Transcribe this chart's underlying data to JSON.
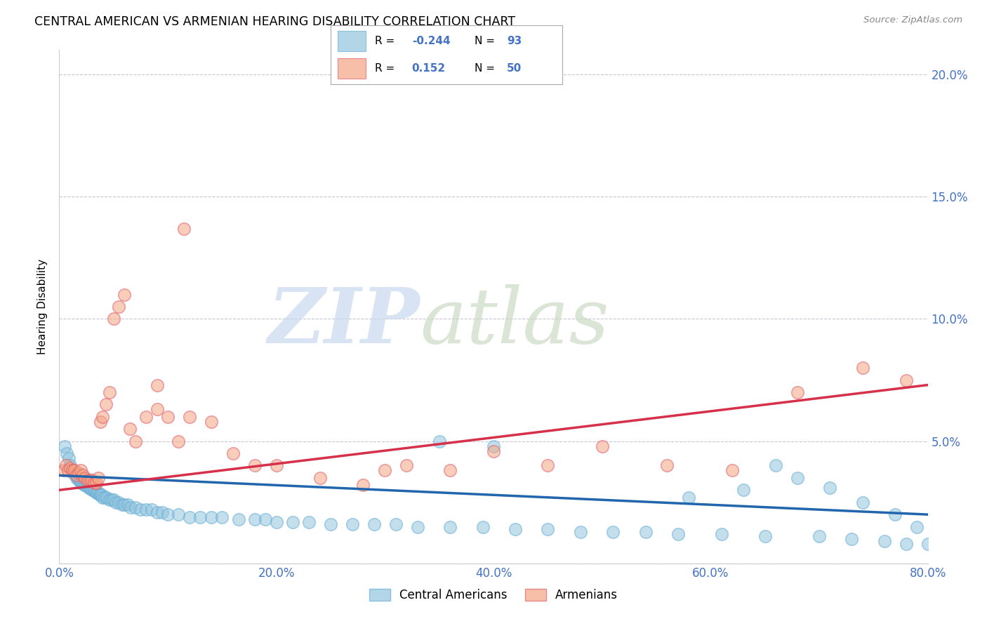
{
  "title": "CENTRAL AMERICAN VS ARMENIAN HEARING DISABILITY CORRELATION CHART",
  "source": "Source: ZipAtlas.com",
  "ylabel": "Hearing Disability",
  "xlim": [
    0.0,
    0.8
  ],
  "ylim": [
    0.0,
    0.21
  ],
  "xtick_vals": [
    0.0,
    0.2,
    0.4,
    0.6,
    0.8
  ],
  "ytick_vals": [
    0.0,
    0.05,
    0.1,
    0.15,
    0.2
  ],
  "xtick_labels": [
    "0.0%",
    "20.0%",
    "40.0%",
    "60.0%",
    "80.0%"
  ],
  "right_ytick_labels": [
    "",
    "5.0%",
    "10.0%",
    "15.0%",
    "20.0%"
  ],
  "blue_color": "#92c5de",
  "pink_color": "#f4a582",
  "blue_scatter_edge": "#6baed6",
  "pink_scatter_edge": "#e06070",
  "blue_line_color": "#2166ac",
  "pink_line_color": "#d6304a",
  "tick_color": "#4472c4",
  "grid_color": "#b8b8c8",
  "blue_trend_x0": 0.0,
  "blue_trend_y0": 0.036,
  "blue_trend_x1": 0.8,
  "blue_trend_y1": 0.02,
  "pink_trend_x0": 0.0,
  "pink_trend_y0": 0.03,
  "pink_trend_x1": 0.8,
  "pink_trend_y1": 0.073,
  "blue_x": [
    0.005,
    0.007,
    0.009,
    0.01,
    0.012,
    0.013,
    0.014,
    0.015,
    0.016,
    0.017,
    0.018,
    0.019,
    0.02,
    0.021,
    0.022,
    0.023,
    0.024,
    0.025,
    0.026,
    0.027,
    0.028,
    0.029,
    0.03,
    0.031,
    0.032,
    0.033,
    0.034,
    0.035,
    0.036,
    0.037,
    0.038,
    0.039,
    0.04,
    0.042,
    0.044,
    0.046,
    0.048,
    0.05,
    0.052,
    0.055,
    0.058,
    0.06,
    0.063,
    0.066,
    0.07,
    0.075,
    0.08,
    0.085,
    0.09,
    0.095,
    0.1,
    0.11,
    0.12,
    0.13,
    0.14,
    0.15,
    0.165,
    0.18,
    0.19,
    0.2,
    0.215,
    0.23,
    0.25,
    0.27,
    0.29,
    0.31,
    0.33,
    0.36,
    0.39,
    0.42,
    0.45,
    0.48,
    0.51,
    0.54,
    0.57,
    0.61,
    0.65,
    0.7,
    0.73,
    0.76,
    0.78,
    0.8,
    0.63,
    0.58,
    0.66,
    0.68,
    0.71,
    0.74,
    0.77,
    0.79,
    0.81,
    0.4,
    0.35
  ],
  "blue_y": [
    0.048,
    0.045,
    0.043,
    0.04,
    0.038,
    0.037,
    0.037,
    0.036,
    0.035,
    0.035,
    0.034,
    0.034,
    0.033,
    0.033,
    0.033,
    0.032,
    0.032,
    0.032,
    0.032,
    0.031,
    0.031,
    0.031,
    0.03,
    0.03,
    0.03,
    0.03,
    0.029,
    0.029,
    0.029,
    0.028,
    0.028,
    0.028,
    0.027,
    0.027,
    0.027,
    0.026,
    0.026,
    0.026,
    0.025,
    0.025,
    0.024,
    0.024,
    0.024,
    0.023,
    0.023,
    0.022,
    0.022,
    0.022,
    0.021,
    0.021,
    0.02,
    0.02,
    0.019,
    0.019,
    0.019,
    0.019,
    0.018,
    0.018,
    0.018,
    0.017,
    0.017,
    0.017,
    0.016,
    0.016,
    0.016,
    0.016,
    0.015,
    0.015,
    0.015,
    0.014,
    0.014,
    0.013,
    0.013,
    0.013,
    0.012,
    0.012,
    0.011,
    0.011,
    0.01,
    0.009,
    0.008,
    0.008,
    0.03,
    0.027,
    0.04,
    0.035,
    0.031,
    0.025,
    0.02,
    0.015,
    0.009,
    0.048,
    0.05
  ],
  "pink_x": [
    0.004,
    0.006,
    0.008,
    0.01,
    0.012,
    0.014,
    0.016,
    0.018,
    0.02,
    0.022,
    0.024,
    0.026,
    0.028,
    0.03,
    0.032,
    0.034,
    0.036,
    0.038,
    0.04,
    0.043,
    0.046,
    0.05,
    0.055,
    0.06,
    0.065,
    0.07,
    0.08,
    0.09,
    0.1,
    0.11,
    0.12,
    0.14,
    0.16,
    0.18,
    0.2,
    0.24,
    0.28,
    0.32,
    0.36,
    0.4,
    0.45,
    0.5,
    0.56,
    0.62,
    0.68,
    0.74,
    0.78,
    0.09,
    0.3,
    0.115
  ],
  "pink_y": [
    0.038,
    0.04,
    0.038,
    0.039,
    0.038,
    0.038,
    0.036,
    0.037,
    0.038,
    0.036,
    0.035,
    0.034,
    0.034,
    0.034,
    0.033,
    0.033,
    0.035,
    0.058,
    0.06,
    0.065,
    0.07,
    0.1,
    0.105,
    0.11,
    0.055,
    0.05,
    0.06,
    0.063,
    0.06,
    0.05,
    0.06,
    0.058,
    0.045,
    0.04,
    0.04,
    0.035,
    0.032,
    0.04,
    0.038,
    0.046,
    0.04,
    0.048,
    0.04,
    0.038,
    0.07,
    0.08,
    0.075,
    0.073,
    0.038,
    0.137
  ],
  "background_color": "#ffffff"
}
